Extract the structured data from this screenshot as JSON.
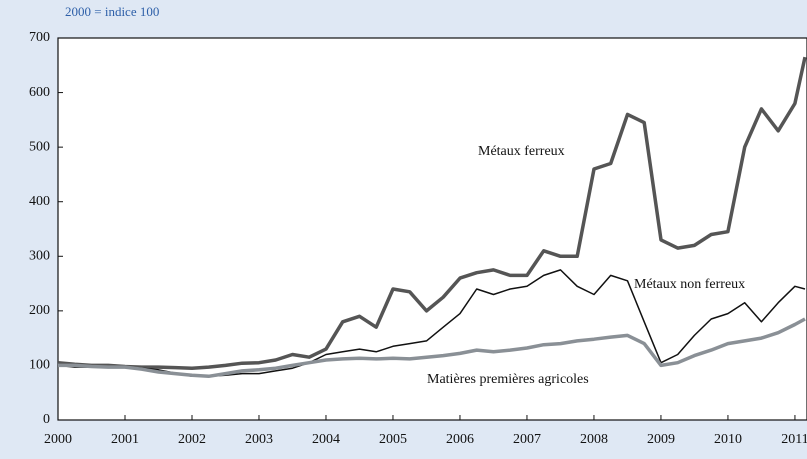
{
  "chart_data": {
    "type": "line",
    "subtitle": "2000 = indice 100",
    "x": [
      2000,
      2000.25,
      2000.5,
      2000.75,
      2001,
      2001.25,
      2001.5,
      2001.75,
      2002,
      2002.25,
      2002.5,
      2002.75,
      2003,
      2003.25,
      2003.5,
      2003.75,
      2004,
      2004.25,
      2004.5,
      2004.75,
      2005,
      2005.25,
      2005.5,
      2005.75,
      2006,
      2006.25,
      2006.5,
      2006.75,
      2007,
      2007.25,
      2007.5,
      2007.75,
      2008,
      2008.25,
      2008.5,
      2008.75,
      2009,
      2009.25,
      2009.5,
      2009.75,
      2010,
      2010.25,
      2010.5,
      2010.75,
      2011,
      2011.15
    ],
    "series": [
      {
        "name": "Métaux ferreux",
        "color": "#555555",
        "width": 3.5,
        "values": [
          105,
          102,
          100,
          100,
          98,
          97,
          97,
          96,
          95,
          97,
          100,
          104,
          105,
          110,
          120,
          115,
          130,
          180,
          190,
          170,
          240,
          235,
          200,
          225,
          260,
          270,
          275,
          265,
          265,
          310,
          300,
          300,
          460,
          470,
          560,
          545,
          330,
          315,
          320,
          340,
          345,
          500,
          570,
          530,
          580,
          665
        ]
      },
      {
        "name": "Métaux non ferreux",
        "color": "#111111",
        "width": 1.5,
        "values": [
          100,
          97,
          97,
          98,
          98,
          95,
          92,
          86,
          80,
          80,
          82,
          85,
          85,
          90,
          95,
          105,
          120,
          125,
          130,
          125,
          135,
          140,
          145,
          170,
          195,
          240,
          230,
          240,
          245,
          265,
          275,
          245,
          230,
          265,
          255,
          180,
          105,
          120,
          155,
          185,
          195,
          215,
          180,
          215,
          245,
          240
        ]
      },
      {
        "name": "Matières premières agricoles",
        "color": "#8a9096",
        "width": 3.5,
        "values": [
          100,
          100,
          98,
          97,
          97,
          93,
          88,
          85,
          82,
          80,
          85,
          90,
          92,
          95,
          100,
          105,
          110,
          112,
          113,
          112,
          113,
          112,
          115,
          118,
          122,
          128,
          125,
          128,
          132,
          138,
          140,
          145,
          148,
          152,
          155,
          140,
          100,
          105,
          118,
          128,
          140,
          145,
          150,
          160,
          175,
          185
        ]
      }
    ],
    "xlim": [
      2000,
      2011.18
    ],
    "xticks": [
      2000,
      2001,
      2002,
      2003,
      2004,
      2005,
      2006,
      2007,
      2008,
      2009,
      2010,
      2011
    ],
    "ylim": [
      0,
      700
    ],
    "yticks": [
      0,
      100,
      200,
      300,
      400,
      500,
      600,
      700
    ],
    "grid": false
  }
}
